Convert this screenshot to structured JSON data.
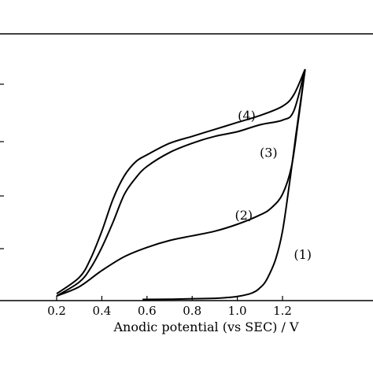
{
  "chart_data": {
    "type": "line",
    "xlabel": "Anodic potential (vs SEC) / V",
    "xlim": [
      0.0,
      1.3
    ],
    "xticks": [
      "0.2",
      "0.4",
      "0.6",
      "0.8",
      "1.0",
      "1.2"
    ],
    "ylim": [
      0,
      100
    ],
    "grid": false,
    "legend": "none",
    "series": [
      {
        "name": "(1)",
        "x": [
          0.58,
          0.7,
          0.8,
          0.9,
          0.95,
          1.0,
          1.05,
          1.08,
          1.1,
          1.12,
          1.14,
          1.17,
          1.2,
          1.23,
          1.26,
          1.3
        ],
        "y": [
          0.5,
          0.6,
          0.8,
          1.0,
          1.3,
          1.8,
          2.8,
          4.0,
          5.5,
          7.5,
          11,
          18,
          30,
          50,
          72,
          100
        ]
      },
      {
        "name": "(2)",
        "x": [
          0.2,
          0.3,
          0.4,
          0.5,
          0.6,
          0.7,
          0.8,
          0.9,
          1.0,
          1.1,
          1.15,
          1.2,
          1.24,
          1.27,
          1.3
        ],
        "y": [
          2,
          6,
          13,
          19,
          23,
          26,
          28,
          30,
          33,
          37,
          40,
          46,
          58,
          78,
          100
        ]
      },
      {
        "name": "(3)",
        "x": [
          0.2,
          0.3,
          0.35,
          0.4,
          0.45,
          0.5,
          0.55,
          0.6,
          0.7,
          0.8,
          0.9,
          1.0,
          1.1,
          1.2,
          1.25,
          1.3
        ],
        "y": [
          2,
          8,
          14,
          23,
          34,
          46,
          53,
          58,
          64,
          68,
          71,
          73,
          76,
          78,
          82,
          100
        ]
      },
      {
        "name": "(4)",
        "x": [
          0.2,
          0.3,
          0.35,
          0.4,
          0.45,
          0.5,
          0.55,
          0.6,
          0.7,
          0.8,
          0.9,
          1.0,
          1.1,
          1.2,
          1.25,
          1.3
        ],
        "y": [
          3,
          10,
          18,
          30,
          44,
          54,
          60,
          63,
          68,
          71,
          74,
          77,
          80,
          84,
          89,
          100
        ]
      }
    ],
    "labels": [
      "(1)",
      "(2)",
      "(3)",
      "(4)"
    ]
  }
}
